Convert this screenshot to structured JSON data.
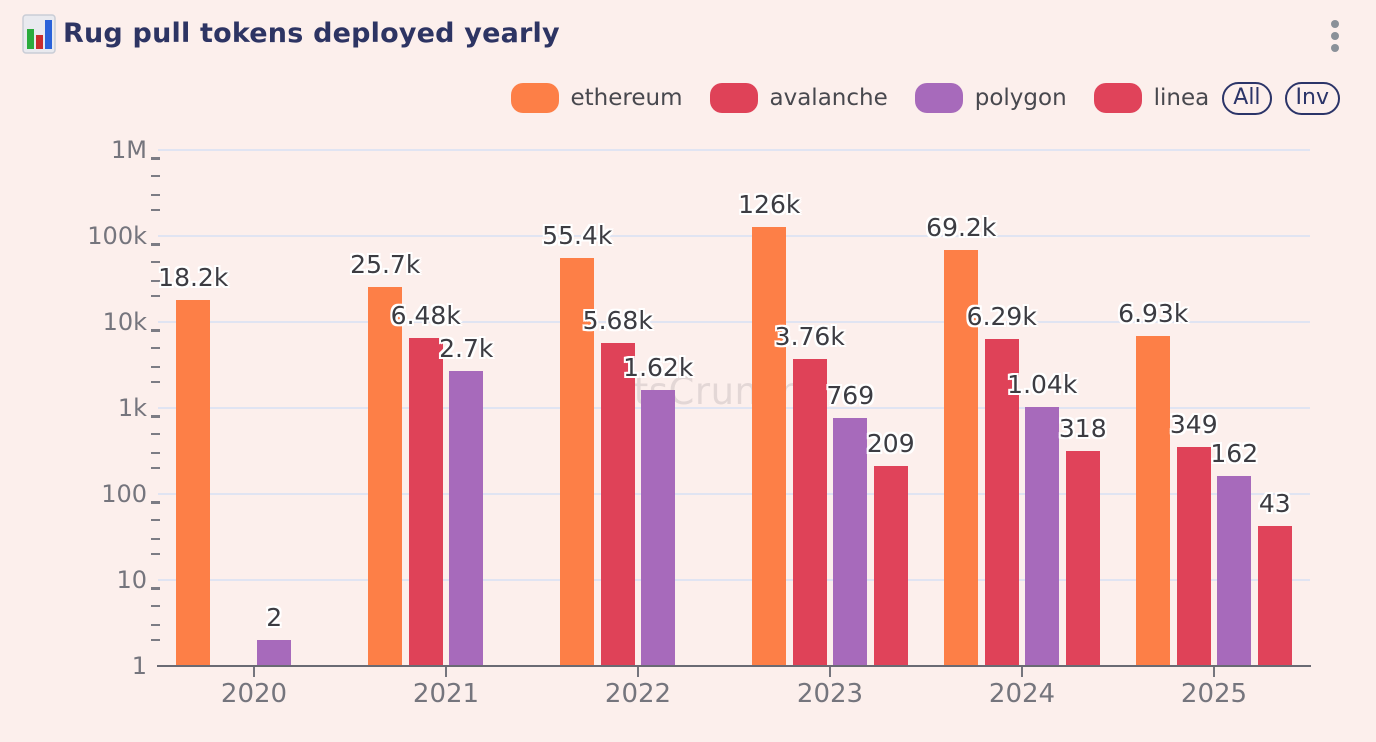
{
  "header": {
    "title": "Rug pull tokens deployed yearly"
  },
  "legend": {
    "items": [
      {
        "label": "ethereum",
        "color": "#fd7f47"
      },
      {
        "label": "avalanche",
        "color": "#df4258"
      },
      {
        "label": "polygon",
        "color": "#a76abb"
      },
      {
        "label": "linea",
        "color": "#e0435a"
      }
    ],
    "buttons": [
      {
        "label": "All"
      },
      {
        "label": "Inv"
      }
    ]
  },
  "watermark": {
    "text": "bitsCrunch"
  },
  "colors": {
    "background": "#fcefec",
    "title": "#2d3463",
    "axis_text": "#75757d",
    "gridline": "#e0e4f2",
    "axis_line": "#6a6a73",
    "bar_label": "#3c3c42",
    "button_outline": "#2b3468"
  },
  "chart_data": {
    "type": "bar",
    "title": "Rug pull tokens deployed yearly",
    "xlabel": "",
    "ylabel": "",
    "y_scale": "log",
    "ylim": [
      1,
      1000000
    ],
    "grid": true,
    "legend_position": "top",
    "categories": [
      "2020",
      "2021",
      "2022",
      "2023",
      "2024",
      "2025"
    ],
    "series": [
      {
        "name": "ethereum",
        "color": "#fd7f47",
        "values": [
          18200,
          25700,
          55400,
          126000,
          69200,
          6930
        ],
        "labels": [
          "18.2k",
          "25.7k",
          "55.4k",
          "126k",
          "69.2k",
          "6.93k"
        ]
      },
      {
        "name": "avalanche",
        "color": "#df4258",
        "values": [
          null,
          6480,
          5680,
          3760,
          6290,
          349
        ],
        "labels": [
          null,
          "6.48k",
          "5.68k",
          "3.76k",
          "6.29k",
          "349"
        ]
      },
      {
        "name": "polygon",
        "color": "#a76abb",
        "values": [
          2,
          2700,
          1620,
          769,
          1040,
          162
        ],
        "labels": [
          "2",
          "2.7k",
          "1.62k",
          "769",
          "1.04k",
          "162"
        ]
      },
      {
        "name": "linea",
        "color": "#e0435a",
        "values": [
          null,
          null,
          null,
          209,
          318,
          43
        ],
        "labels": [
          null,
          null,
          null,
          "209",
          "318",
          "43"
        ]
      }
    ],
    "y_ticks": [
      {
        "label": "1M",
        "value": 1000000
      },
      {
        "label": "100k",
        "value": 100000
      },
      {
        "label": "10k",
        "value": 10000
      },
      {
        "label": "1k",
        "value": 1000
      },
      {
        "label": "100",
        "value": 100
      },
      {
        "label": "10",
        "value": 10
      },
      {
        "label": "1",
        "value": 1
      }
    ]
  }
}
